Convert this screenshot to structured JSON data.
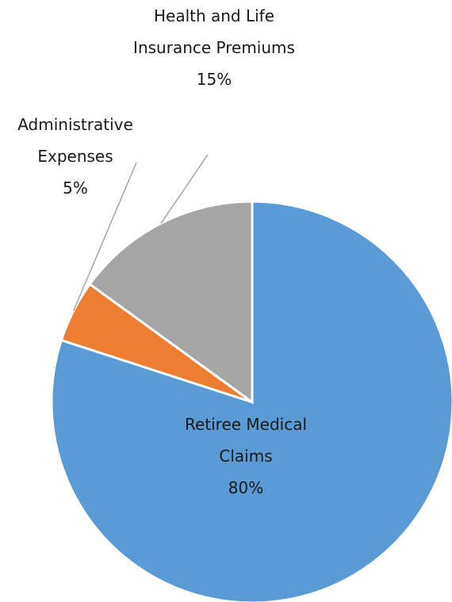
{
  "chart_data": {
    "type": "pie",
    "categories": [
      "Retiree Medical Claims",
      "Administrative Expenses",
      "Health and Life Insurance Premiums"
    ],
    "values": [
      80,
      5,
      15
    ],
    "value_labels": [
      "80%",
      "5%",
      "15%"
    ],
    "colors": [
      "#5b9bd5",
      "#ed7d31",
      "#a5a5a5"
    ]
  }
}
